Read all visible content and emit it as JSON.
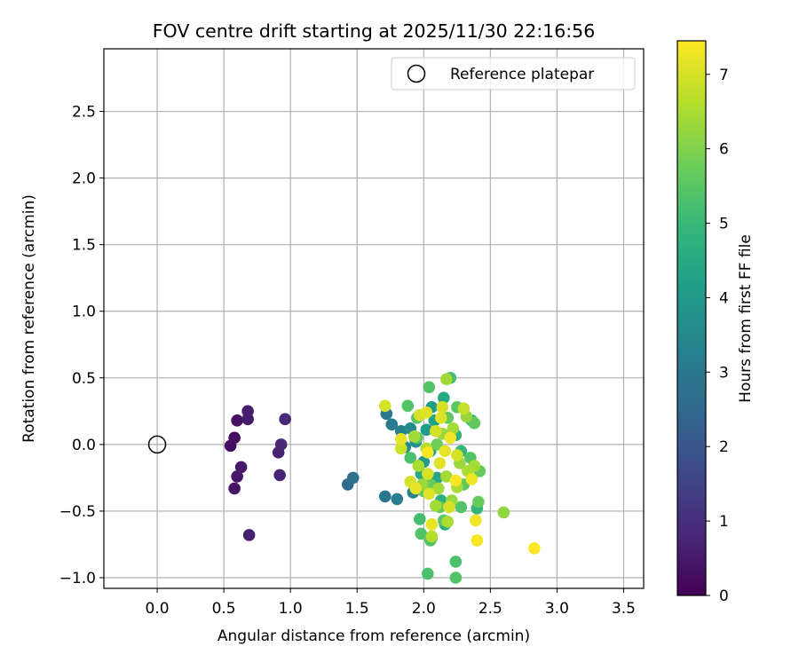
{
  "chart_data": {
    "type": "scatter",
    "title": "FOV centre drift starting at 2025/11/30 22:16:56",
    "xlabel": "Angular distance from reference (arcmin)",
    "ylabel": "Rotation from reference (arcmin)",
    "xlim": [
      -0.4,
      3.65
    ],
    "ylim": [
      -1.08,
      2.97
    ],
    "xticks": [
      0.0,
      0.5,
      1.0,
      1.5,
      2.0,
      2.5,
      3.0,
      3.5
    ],
    "xtick_labels": [
      "0.0",
      "0.5",
      "1.0",
      "1.5",
      "2.0",
      "2.5",
      "3.0",
      "3.5"
    ],
    "yticks": [
      -1.0,
      -0.5,
      0.0,
      0.5,
      1.0,
      1.5,
      2.0,
      2.5
    ],
    "ytick_labels": [
      "−1.0",
      "−0.5",
      "0.0",
      "0.5",
      "1.0",
      "1.5",
      "2.0",
      "2.5"
    ],
    "grid": true,
    "legend": {
      "placement": "top-right",
      "label": "Reference platepar",
      "marker": "open-circle"
    },
    "reference_point": {
      "x": 0.0,
      "y": 0.0
    },
    "colorbar": {
      "label": "Hours from first FF file",
      "colormap": "viridis",
      "range": [
        0,
        7.45
      ],
      "ticks": [
        0,
        1,
        2,
        3,
        4,
        5,
        6,
        7
      ],
      "tick_labels": [
        "0",
        "1",
        "2",
        "3",
        "4",
        "5",
        "6",
        "7"
      ]
    },
    "colormap_stops": [
      "#440154",
      "#482878",
      "#3e4989",
      "#31688e",
      "#26828e",
      "#1f9e89",
      "#35b779",
      "#6ece58",
      "#b5de2b",
      "#fde725"
    ],
    "points": [
      {
        "x": 0.55,
        "y": -0.01,
        "c": 0.25
      },
      {
        "x": 0.58,
        "y": 0.05,
        "c": 0.3
      },
      {
        "x": 0.6,
        "y": 0.18,
        "c": 0.35
      },
      {
        "x": 0.58,
        "y": -0.33,
        "c": 0.4
      },
      {
        "x": 0.6,
        "y": -0.24,
        "c": 0.45
      },
      {
        "x": 0.63,
        "y": -0.17,
        "c": 0.5
      },
      {
        "x": 0.68,
        "y": 0.19,
        "c": 0.55
      },
      {
        "x": 0.68,
        "y": 0.25,
        "c": 0.6
      },
      {
        "x": 0.69,
        "y": -0.68,
        "c": 0.65
      },
      {
        "x": 0.91,
        "y": -0.06,
        "c": 0.7
      },
      {
        "x": 0.92,
        "y": -0.23,
        "c": 0.75
      },
      {
        "x": 0.93,
        "y": 0.0,
        "c": 0.8
      },
      {
        "x": 0.96,
        "y": 0.19,
        "c": 0.85
      },
      {
        "x": 1.43,
        "y": -0.3,
        "c": 2.6
      },
      {
        "x": 1.47,
        "y": -0.25,
        "c": 2.7
      },
      {
        "x": 1.71,
        "y": -0.39,
        "c": 2.9
      },
      {
        "x": 1.72,
        "y": 0.23,
        "c": 3.0
      },
      {
        "x": 1.76,
        "y": 0.15,
        "c": 3.1
      },
      {
        "x": 1.8,
        "y": -0.41,
        "c": 3.2
      },
      {
        "x": 1.83,
        "y": 0.1,
        "c": 3.3
      },
      {
        "x": 1.86,
        "y": -0.02,
        "c": 3.5
      },
      {
        "x": 1.9,
        "y": 0.12,
        "c": 3.6
      },
      {
        "x": 1.92,
        "y": -0.36,
        "c": 3.4
      },
      {
        "x": 1.94,
        "y": 0.02,
        "c": 3.7
      },
      {
        "x": 1.97,
        "y": 0.22,
        "c": 3.9
      },
      {
        "x": 2.0,
        "y": -0.13,
        "c": 4.0
      },
      {
        "x": 2.02,
        "y": 0.11,
        "c": 4.1
      },
      {
        "x": 2.05,
        "y": -0.05,
        "c": 4.2
      },
      {
        "x": 2.08,
        "y": 0.18,
        "c": 4.3
      },
      {
        "x": 2.1,
        "y": -0.25,
        "c": 4.4
      },
      {
        "x": 2.15,
        "y": 0.35,
        "c": 4.5
      },
      {
        "x": 2.16,
        "y": -0.6,
        "c": 4.6
      },
      {
        "x": 2.2,
        "y": 0.07,
        "c": 4.7
      },
      {
        "x": 2.24,
        "y": 0.07,
        "c": 4.8
      },
      {
        "x": 2.28,
        "y": -0.05,
        "c": 4.9
      },
      {
        "x": 2.36,
        "y": 0.18,
        "c": 5.0
      },
      {
        "x": 2.4,
        "y": -0.48,
        "c": 4.9
      },
      {
        "x": 2.13,
        "y": -0.42,
        "c": 4.7
      },
      {
        "x": 1.98,
        "y": -0.22,
        "c": 4.5
      },
      {
        "x": 2.06,
        "y": 0.28,
        "c": 4.1
      },
      {
        "x": 2.2,
        "y": 0.5,
        "c": 5.2
      },
      {
        "x": 2.04,
        "y": 0.43,
        "c": 5.4
      },
      {
        "x": 2.03,
        "y": -0.97,
        "c": 5.3
      },
      {
        "x": 2.24,
        "y": -1.0,
        "c": 5.4
      },
      {
        "x": 2.24,
        "y": -0.88,
        "c": 5.3
      },
      {
        "x": 1.98,
        "y": -0.67,
        "c": 5.4
      },
      {
        "x": 2.06,
        "y": -0.7,
        "c": 5.3
      },
      {
        "x": 2.05,
        "y": -0.72,
        "c": 5.4
      },
      {
        "x": 1.97,
        "y": -0.56,
        "c": 5.2
      },
      {
        "x": 2.15,
        "y": -0.57,
        "c": 5.5
      },
      {
        "x": 2.28,
        "y": -0.47,
        "c": 5.4
      },
      {
        "x": 2.12,
        "y": -0.47,
        "c": 5.6
      },
      {
        "x": 1.88,
        "y": 0.29,
        "c": 5.4
      },
      {
        "x": 2.38,
        "y": 0.16,
        "c": 5.6
      },
      {
        "x": 2.42,
        "y": -0.2,
        "c": 5.7
      },
      {
        "x": 2.41,
        "y": -0.43,
        "c": 5.7
      },
      {
        "x": 1.95,
        "y": 0.2,
        "c": 5.5
      },
      {
        "x": 2.3,
        "y": -0.3,
        "c": 5.6
      },
      {
        "x": 2.0,
        "y": -0.35,
        "c": 5.5
      },
      {
        "x": 2.18,
        "y": 0.2,
        "c": 5.6
      },
      {
        "x": 1.9,
        "y": -0.1,
        "c": 5.3
      },
      {
        "x": 2.25,
        "y": 0.28,
        "c": 5.5
      },
      {
        "x": 2.35,
        "y": -0.1,
        "c": 5.4
      },
      {
        "x": 1.95,
        "y": 0.05,
        "c": 5.5
      },
      {
        "x": 2.1,
        "y": 0.0,
        "c": 5.8
      },
      {
        "x": 2.05,
        "y": -0.3,
        "c": 5.7
      },
      {
        "x": 2.6,
        "y": -0.51,
        "c": 6.2
      },
      {
        "x": 2.17,
        "y": 0.49,
        "c": 6.4
      },
      {
        "x": 2.32,
        "y": 0.21,
        "c": 6.3
      },
      {
        "x": 2.3,
        "y": 0.27,
        "c": 6.8
      },
      {
        "x": 2.06,
        "y": -0.69,
        "c": 6.6
      },
      {
        "x": 2.18,
        "y": -0.58,
        "c": 6.5
      },
      {
        "x": 2.11,
        "y": -0.33,
        "c": 6.4
      },
      {
        "x": 2.14,
        "y": 0.08,
        "c": 6.3
      },
      {
        "x": 2.22,
        "y": 0.12,
        "c": 6.4
      },
      {
        "x": 2.27,
        "y": -0.14,
        "c": 6.3
      },
      {
        "x": 2.33,
        "y": -0.2,
        "c": 6.5
      },
      {
        "x": 2.38,
        "y": -0.16,
        "c": 6.4
      },
      {
        "x": 1.96,
        "y": -0.16,
        "c": 6.5
      },
      {
        "x": 1.99,
        "y": -0.3,
        "c": 6.3
      },
      {
        "x": 2.02,
        "y": -0.03,
        "c": 6.6
      },
      {
        "x": 2.17,
        "y": -0.24,
        "c": 6.4
      },
      {
        "x": 2.25,
        "y": -0.32,
        "c": 6.5
      },
      {
        "x": 2.09,
        "y": -0.46,
        "c": 6.4
      },
      {
        "x": 2.21,
        "y": -0.42,
        "c": 6.3
      },
      {
        "x": 1.93,
        "y": 0.06,
        "c": 6.4
      },
      {
        "x": 1.71,
        "y": 0.29,
        "c": 7.0
      },
      {
        "x": 1.83,
        "y": 0.04,
        "c": 7.2
      },
      {
        "x": 1.83,
        "y": -0.03,
        "c": 6.9
      },
      {
        "x": 1.9,
        "y": -0.28,
        "c": 7.0
      },
      {
        "x": 1.97,
        "y": 0.22,
        "c": 7.0
      },
      {
        "x": 2.02,
        "y": 0.24,
        "c": 7.1
      },
      {
        "x": 2.03,
        "y": -0.22,
        "c": 7.0
      },
      {
        "x": 2.04,
        "y": -0.37,
        "c": 7.1
      },
      {
        "x": 2.06,
        "y": -0.6,
        "c": 7.2
      },
      {
        "x": 2.09,
        "y": 0.1,
        "c": 7.0
      },
      {
        "x": 2.12,
        "y": -0.14,
        "c": 7.1
      },
      {
        "x": 2.14,
        "y": 0.28,
        "c": 7.0
      },
      {
        "x": 2.16,
        "y": -0.05,
        "c": 7.2
      },
      {
        "x": 2.19,
        "y": -0.47,
        "c": 7.0
      },
      {
        "x": 2.2,
        "y": 0.05,
        "c": 7.3
      },
      {
        "x": 2.24,
        "y": -0.27,
        "c": 7.4
      },
      {
        "x": 2.25,
        "y": -0.08,
        "c": 7.0
      },
      {
        "x": 2.36,
        "y": -0.26,
        "c": 7.3
      },
      {
        "x": 2.39,
        "y": -0.57,
        "c": 7.3
      },
      {
        "x": 2.4,
        "y": -0.72,
        "c": 7.4
      },
      {
        "x": 2.83,
        "y": -0.78,
        "c": 7.45
      },
      {
        "x": 2.03,
        "y": -0.06,
        "c": 7.4
      },
      {
        "x": 1.94,
        "y": -0.33,
        "c": 7.2
      },
      {
        "x": 2.13,
        "y": 0.2,
        "c": 7.1
      }
    ]
  }
}
